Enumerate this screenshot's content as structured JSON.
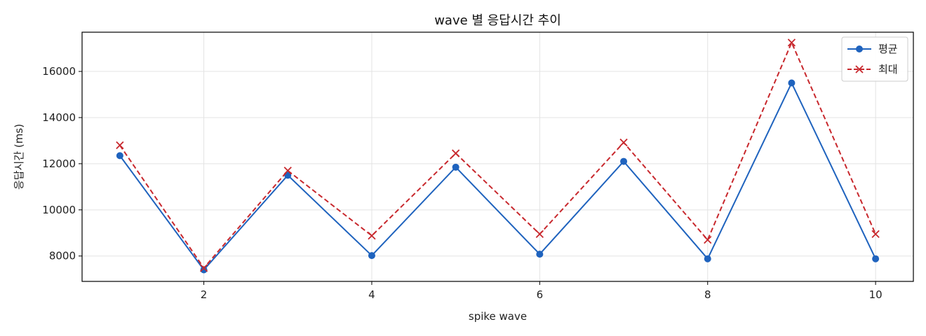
{
  "chart_data": {
    "type": "line",
    "title": "wave 별 응답시간 추이",
    "xlabel": "spike wave",
    "ylabel": "응답시간 (ms)",
    "x": [
      1,
      2,
      3,
      4,
      5,
      6,
      7,
      8,
      9,
      10
    ],
    "xticks": [
      2,
      4,
      6,
      8,
      10
    ],
    "yticks": [
      8000,
      10000,
      12000,
      14000,
      16000
    ],
    "xlim": [
      0.55,
      10.45
    ],
    "ylim": [
      6900,
      17700
    ],
    "grid": true,
    "legend_position": "top-right",
    "series": [
      {
        "name": "평균",
        "values": [
          12350,
          7400,
          11500,
          8020,
          11850,
          8080,
          12100,
          7880,
          15500,
          7880
        ],
        "color": "#1f63be",
        "line_style": "solid",
        "marker": "circle"
      },
      {
        "name": "최대",
        "values": [
          12800,
          7480,
          11700,
          8880,
          12450,
          8950,
          12920,
          8700,
          17250,
          8950
        ],
        "color": "#c8282d",
        "line_style": "dashed",
        "marker": "x"
      }
    ]
  }
}
